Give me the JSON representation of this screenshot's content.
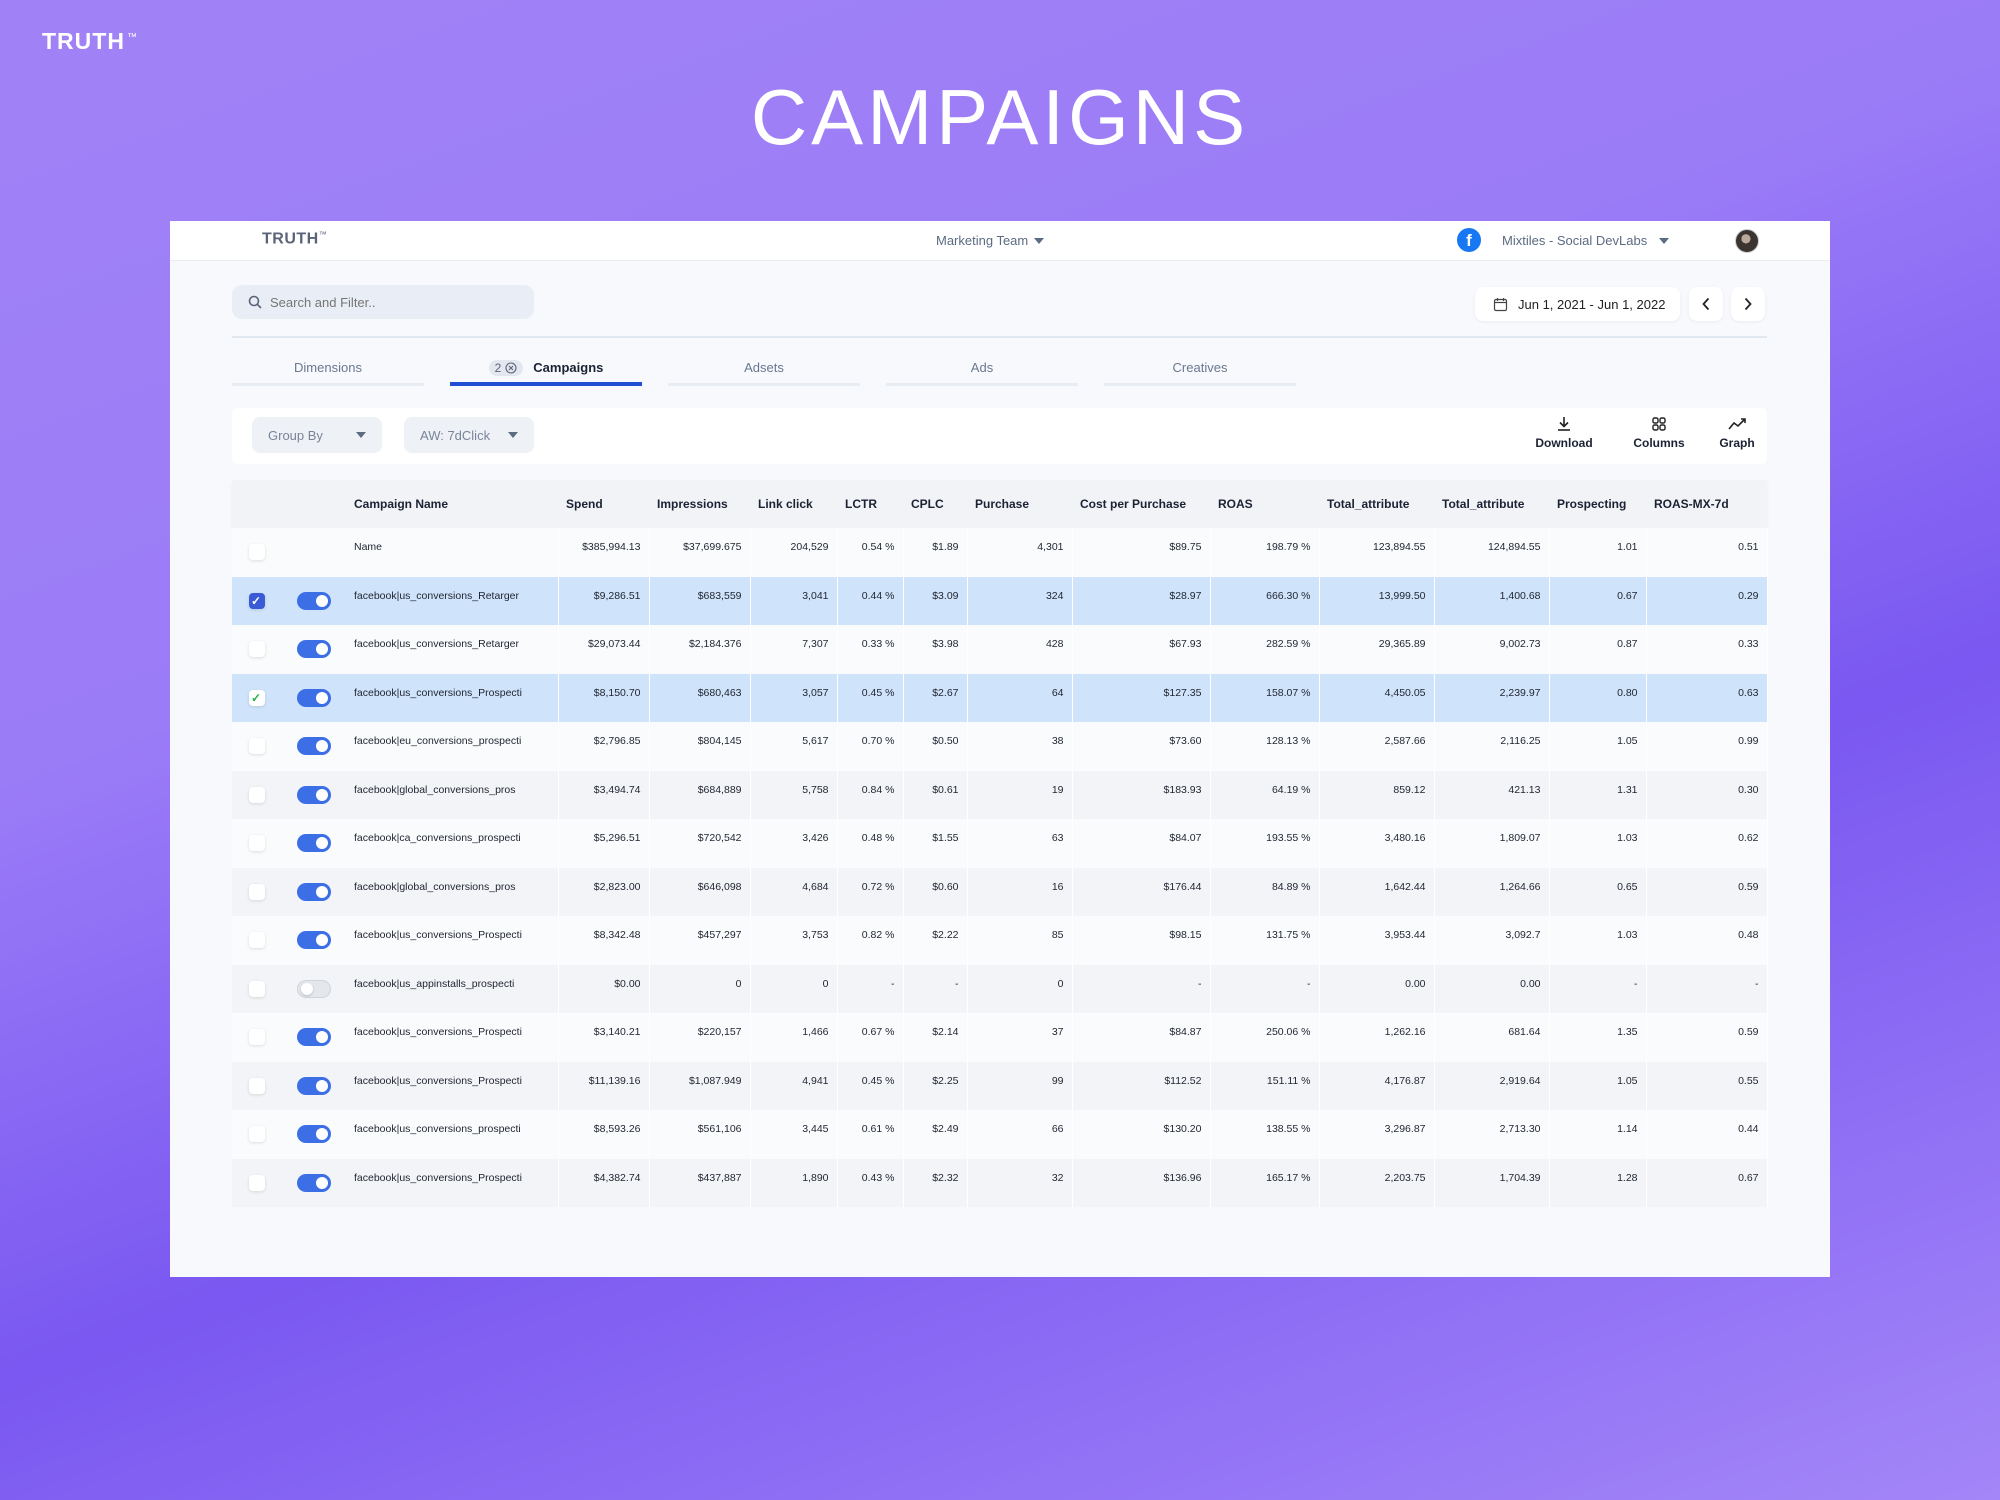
{
  "brand": {
    "name": "TRUTH",
    "tm": "™"
  },
  "hero_title": "CAMPAIGNS",
  "app": {
    "logo": "TRUTH",
    "logo_tm": "™",
    "team": "Marketing Team",
    "account": "Mixtiles - Social DevLabs",
    "search_placeholder": "Search and Filter..",
    "date_range": "Jun 1, 2021 - Jun 1, 2022",
    "tabs": [
      {
        "label": "Dimensions"
      },
      {
        "label": "Campaigns",
        "badge": "2",
        "active": true
      },
      {
        "label": "Adsets"
      },
      {
        "label": "Ads"
      },
      {
        "label": "Creatives"
      }
    ],
    "toolbar": {
      "group_by": "Group By",
      "attribution": "AW: 7dClick",
      "download": "Download",
      "columns": "Columns",
      "graph": "Graph"
    },
    "table": {
      "headers": [
        "Campaign Name",
        "Spend",
        "Impressions",
        "Link click",
        "LCTR",
        "CPLC",
        "Purchase",
        "Cost per Purchase",
        "ROAS",
        "Total_attribute",
        "Total_attribute",
        "Prospecting",
        "ROAS-MX-7d"
      ],
      "rows": [
        {
          "checkbox": "none",
          "toggle": "none",
          "cells": [
            "Name",
            "$385,994.13",
            "$37,699.675",
            "204,529",
            "0.54 %",
            "$1.89",
            "4,301",
            "$89.75",
            "198.79 %",
            "123,894.55",
            "124,894.55",
            "1.01",
            "0.51"
          ]
        },
        {
          "checkbox": "blue",
          "toggle": "on",
          "cells": [
            "facebook|us_conversions_Retarger",
            "$9,286.51",
            "$683,559",
            "3,041",
            "0.44 %",
            "$3.09",
            "324",
            "$28.97",
            "666.30 %",
            "13,999.50",
            "1,400.68",
            "0.67",
            "0.29"
          ]
        },
        {
          "checkbox": "none",
          "toggle": "on",
          "cells": [
            "facebook|us_conversions_Retarger",
            "$29,073.44",
            "$2,184.376",
            "7,307",
            "0.33 %",
            "$3.98",
            "428",
            "$67.93",
            "282.59 %",
            "29,365.89",
            "9,002.73",
            "0.87",
            "0.33"
          ]
        },
        {
          "checkbox": "green",
          "toggle": "on",
          "cells": [
            "facebook|us_conversions_Prospecti",
            "$8,150.70",
            "$680,463",
            "3,057",
            "0.45 %",
            "$2.67",
            "64",
            "$127.35",
            "158.07 %",
            "4,450.05",
            "2,239.97",
            "0.80",
            "0.63"
          ]
        },
        {
          "checkbox": "none",
          "toggle": "on",
          "cells": [
            "facebook|eu_conversions_prospecti",
            "$2,796.85",
            "$804,145",
            "5,617",
            "0.70 %",
            "$0.50",
            "38",
            "$73.60",
            "128.13 %",
            "2,587.66",
            "2,116.25",
            "1.05",
            "0.99"
          ]
        },
        {
          "checkbox": "none",
          "toggle": "on",
          "cells": [
            "facebook|global_conversions_pros",
            "$3,494.74",
            "$684,889",
            "5,758",
            "0.84 %",
            "$0.61",
            "19",
            "$183.93",
            "64.19 %",
            "859.12",
            "421.13",
            "1.31",
            "0.30"
          ]
        },
        {
          "checkbox": "none",
          "toggle": "on",
          "cells": [
            "facebook|ca_conversions_prospecti",
            "$5,296.51",
            "$720,542",
            "3,426",
            "0.48 %",
            "$1.55",
            "63",
            "$84.07",
            "193.55 %",
            "3,480.16",
            "1,809.07",
            "1.03",
            "0.62"
          ]
        },
        {
          "checkbox": "none",
          "toggle": "on",
          "cells": [
            "facebook|global_conversions_pros",
            "$2,823.00",
            "$646,098",
            "4,684",
            "0.72 %",
            "$0.60",
            "16",
            "$176.44",
            "84.89 %",
            "1,642.44",
            "1,264.66",
            "0.65",
            "0.59"
          ]
        },
        {
          "checkbox": "none",
          "toggle": "on",
          "cells": [
            "facebook|us_conversions_Prospecti",
            "$8,342.48",
            "$457,297",
            "3,753",
            "0.82 %",
            "$2.22",
            "85",
            "$98.15",
            "131.75 %",
            "3,953.44",
            "3,092.7",
            "1.03",
            "0.48"
          ]
        },
        {
          "checkbox": "none",
          "toggle": "off",
          "cells": [
            "facebook|us_appinstalls_prospecti",
            "$0.00",
            "0",
            "0",
            "-",
            "-",
            "0",
            "-",
            "-",
            "0.00",
            "0.00",
            "-",
            "-"
          ]
        },
        {
          "checkbox": "none",
          "toggle": "on",
          "cells": [
            "facebook|us_conversions_Prospecti",
            "$3,140.21",
            "$220,157",
            "1,466",
            "0.67 %",
            "$2.14",
            "37",
            "$84.87",
            "250.06 %",
            "1,262.16",
            "681.64",
            "1.35",
            "0.59"
          ]
        },
        {
          "checkbox": "none",
          "toggle": "on",
          "cells": [
            "facebook|us_conversions_Prospecti",
            "$11,139.16",
            "$1,087.949",
            "4,941",
            "0.45 %",
            "$2.25",
            "99",
            "$112.52",
            "151.11 %",
            "4,176.87",
            "2,919.64",
            "1.05",
            "0.55"
          ]
        },
        {
          "checkbox": "none",
          "toggle": "on",
          "cells": [
            "facebook|us_conversions_prospecti",
            "$8,593.26",
            "$561,106",
            "3,445",
            "0.61 %",
            "$2.49",
            "66",
            "$130.20",
            "138.55 %",
            "3,296.87",
            "2,713.30",
            "1.14",
            "0.44"
          ]
        },
        {
          "checkbox": "none",
          "toggle": "on",
          "cells": [
            "facebook|us_conversions_Prospecti",
            "$4,382.74",
            "$437,887",
            "1,890",
            "0.43 %",
            "$2.32",
            "32",
            "$136.96",
            "165.17 %",
            "2,203.75",
            "1,704.39",
            "1.28",
            "0.67"
          ]
        }
      ]
    }
  }
}
